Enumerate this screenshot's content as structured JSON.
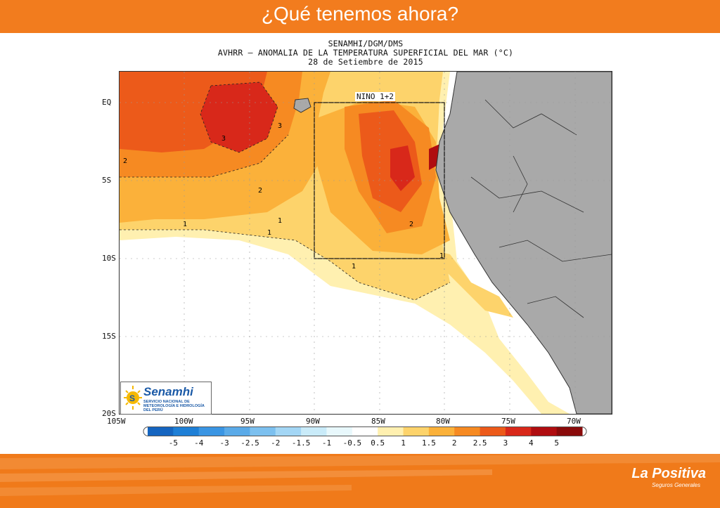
{
  "header": {
    "title": "¿Qué tenemos ahora?",
    "background": "#f27c1e"
  },
  "map": {
    "title_line1": "SENAMHI/DGM/DMS",
    "title_line2": "AVHRR – ANOMALIA DE LA TEMPERATURA SUPERFICIAL DEL MAR (°C)",
    "title_line3": "28 de Setiembre de 2015",
    "region_box_label": "NINO 1+2",
    "lat_labels": [
      "EQ",
      "5S",
      "10S",
      "15S",
      "20S"
    ],
    "lon_labels": [
      "105W",
      "100W",
      "95W",
      "90W",
      "85W",
      "80W",
      "75W",
      "70W"
    ],
    "contour_labels": [
      "2",
      "3",
      "3",
      "2",
      "1",
      "1",
      "2",
      "1",
      "1",
      "1"
    ],
    "land_color": "#a9a9a9"
  },
  "legend": {
    "labels": [
      "-5",
      "-4",
      "-3",
      "-2.5",
      "-2",
      "-1.5",
      "-1",
      "-0.5",
      "0.5",
      "1",
      "1.5",
      "2",
      "2.5",
      "3",
      "4",
      "5"
    ],
    "colors": [
      "#1565c0",
      "#1e7fd6",
      "#3a95e3",
      "#5aaae8",
      "#7cc0ef",
      "#a3d6f5",
      "#c9ebf9",
      "#e8f8fc",
      "#ffffff",
      "#fff0b0",
      "#fdd36b",
      "#fbb13a",
      "#f68a22",
      "#ec5a1a",
      "#d8281a",
      "#b00d10",
      "#8a0a0a"
    ]
  },
  "logo": {
    "name": "Senamhi",
    "subtitle": "SERVICIO NACIONAL DE METEOROLOGÍA E HIDROLOGÍA DEL PERÚ"
  },
  "brand": {
    "name": "La Positiva",
    "tagline": "Seguros Generales"
  }
}
